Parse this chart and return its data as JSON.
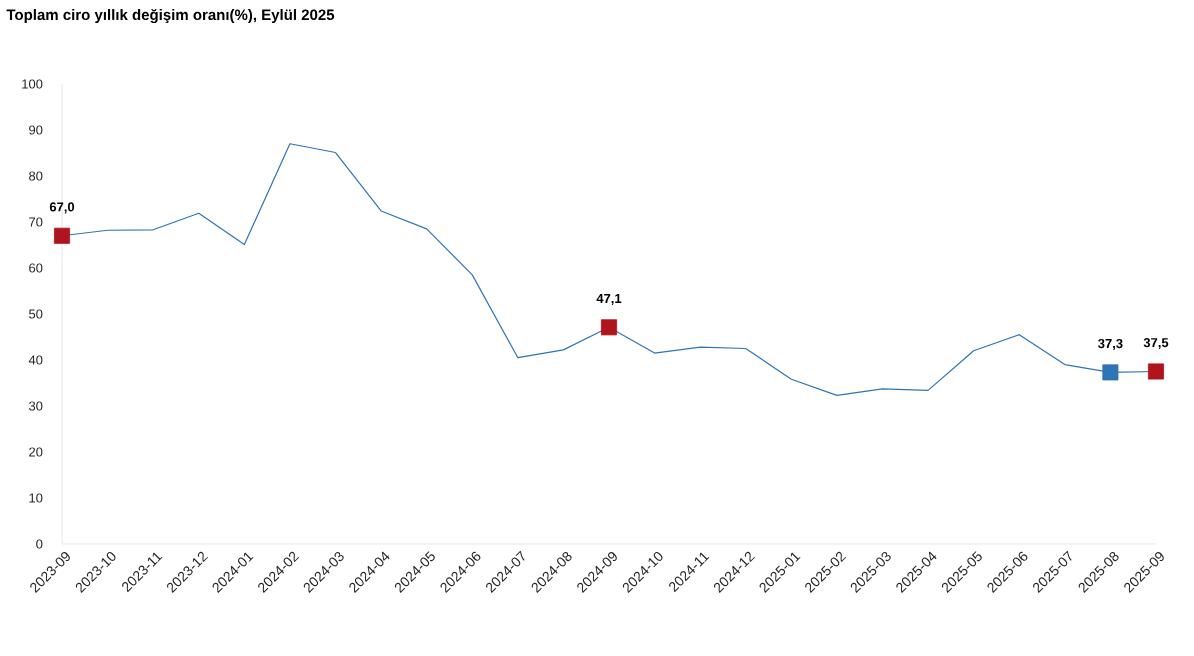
{
  "chart_data": {
    "type": "line",
    "title": "Toplam ciro yıllık değişim oranı(%), Eylül 2025",
    "categories": [
      "2023-09",
      "2023-10",
      "2023-11",
      "2023-12",
      "2024-01",
      "2024-02",
      "2024-03",
      "2024-04",
      "2024-05",
      "2024-06",
      "2024-07",
      "2024-08",
      "2024-09",
      "2024-10",
      "2024-11",
      "2024-12",
      "2025-01",
      "2025-02",
      "2025-03",
      "2025-04",
      "2025-05",
      "2025-06",
      "2025-07",
      "2025-08",
      "2025-09"
    ],
    "series": [
      {
        "color": "#2e75b6",
        "values": [
          67.0,
          68.2,
          68.3,
          71.9,
          65.1,
          87.0,
          85.1,
          72.4,
          68.5,
          58.5,
          40.5,
          42.2,
          47.1,
          41.5,
          42.8,
          42.5,
          35.8,
          32.3,
          33.7,
          33.4,
          42.0,
          45.5,
          39.0,
          37.3,
          37.5
        ],
        "colors": [
          "#b0141c",
          null,
          null,
          null,
          null,
          null,
          null,
          null,
          null,
          null,
          null,
          null,
          "#b0141c",
          null,
          null,
          null,
          null,
          null,
          null,
          null,
          null,
          null,
          null,
          "#2e75b6",
          "#b0141c"
        ],
        "value_labels": [
          "67,0",
          null,
          null,
          null,
          null,
          null,
          null,
          null,
          null,
          null,
          null,
          null,
          "47,1",
          null,
          null,
          null,
          null,
          null,
          null,
          null,
          null,
          null,
          null,
          "37,3",
          "37,5"
        ]
      }
    ],
    "ylim": [
      0,
      100
    ],
    "yticks": [
      0,
      10,
      20,
      30,
      40,
      50,
      60,
      70,
      80,
      90,
      100
    ],
    "line_style": "solid",
    "grid": false
  }
}
